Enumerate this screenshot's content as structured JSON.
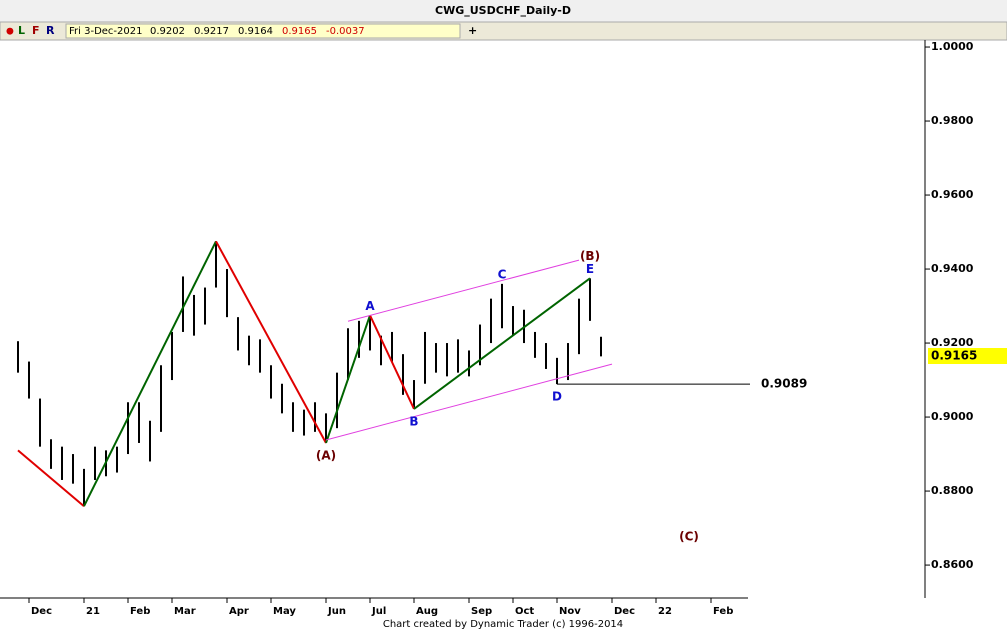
{
  "chart_data": {
    "type": "range-bar",
    "title": "CWG_USDCHF_Daily-D",
    "toolbar": {
      "marker": "●",
      "buttons": [
        "L",
        "F",
        "R"
      ],
      "date": "Fri 3-Dec-2021",
      "open": 0.9202,
      "high": 0.9217,
      "low": 0.9164,
      "close": 0.9165,
      "change": -0.0037,
      "add": "+"
    },
    "footer": "Chart created by Dynamic Trader  (c) 1996-2014",
    "color": "#000000",
    "categories": [
      null,
      "Dec",
      null,
      null,
      null,
      null,
      "21",
      null,
      null,
      null,
      "Feb",
      null,
      null,
      null,
      "Mar",
      null,
      null,
      null,
      null,
      "Apr",
      null,
      null,
      null,
      "May",
      null,
      null,
      null,
      null,
      "Jun",
      null,
      null,
      null,
      "Jul",
      null,
      null,
      null,
      "Aug",
      null,
      null,
      null,
      null,
      "Sep",
      null,
      null,
      null,
      "Oct",
      null,
      null,
      null,
      "Nov",
      null,
      null,
      null,
      null,
      "Dec",
      null,
      null,
      null,
      "22",
      null,
      null,
      null,
      null,
      "Feb",
      null,
      null,
      null
    ],
    "high": [
      0.9205,
      0.915,
      0.905,
      0.894,
      0.892,
      0.89,
      0.886,
      0.892,
      0.891,
      0.892,
      0.904,
      0.904,
      0.899,
      0.914,
      0.923,
      0.938,
      0.933,
      0.935,
      0.9475,
      0.94,
      0.927,
      0.922,
      0.921,
      0.914,
      0.909,
      0.904,
      0.902,
      0.904,
      0.901,
      0.912,
      0.924,
      0.926,
      0.9275,
      0.922,
      0.923,
      0.917,
      0.91,
      0.923,
      0.92,
      0.92,
      0.921,
      0.918,
      0.925,
      0.932,
      0.936,
      0.93,
      0.929,
      0.923,
      0.92,
      0.916,
      0.92,
      0.932,
      0.9375,
      0.9217,
      null,
      null,
      null,
      null,
      null,
      null,
      null,
      null,
      null,
      null,
      null,
      null,
      null
    ],
    "low": [
      0.912,
      0.905,
      0.892,
      0.886,
      0.883,
      0.882,
      0.8759,
      0.883,
      0.884,
      0.885,
      0.89,
      0.893,
      0.888,
      0.896,
      0.91,
      0.923,
      0.922,
      0.925,
      0.935,
      0.927,
      0.918,
      0.914,
      0.912,
      0.905,
      0.901,
      0.896,
      0.895,
      0.896,
      0.893,
      0.897,
      0.91,
      0.916,
      0.918,
      0.914,
      0.915,
      0.906,
      0.9022,
      0.909,
      0.912,
      0.911,
      0.912,
      0.911,
      0.914,
      0.92,
      0.924,
      0.922,
      0.92,
      0.916,
      0.913,
      0.9089,
      0.91,
      0.917,
      0.926,
      0.9164,
      null,
      null,
      null,
      null,
      null,
      null,
      null,
      null,
      null,
      null,
      null,
      null,
      null
    ],
    "ylim": [
      0.8511,
      1.0019
    ],
    "yticks": [
      {
        "value": 0.86,
        "label": "0.8600"
      },
      {
        "value": 0.88,
        "label": "0.8800"
      },
      {
        "value": 0.9,
        "label": "0.9000"
      },
      {
        "value": 0.92,
        "label": "0.9200"
      },
      {
        "value": 0.94,
        "label": "0.9400"
      },
      {
        "value": 0.96,
        "label": "0.9600"
      },
      {
        "value": 0.98,
        "label": "0.9800"
      },
      {
        "value": 1.0,
        "label": "1.0000"
      }
    ],
    "last_price": 0.9165,
    "last_price_color": "#ffff00",
    "wave_pivots": [
      {
        "index": 0,
        "value": 0.891
      },
      {
        "index": 6,
        "value": 0.8759
      },
      {
        "index": 18,
        "value": 0.9475
      },
      {
        "index": 28,
        "value": 0.893
      },
      {
        "index": 32,
        "value": 0.9275
      },
      {
        "index": 36,
        "value": 0.9022
      },
      {
        "index": 52,
        "value": 0.9375
      }
    ],
    "wave_colors": [
      "#e00000",
      "#006400",
      "#e00000",
      "#006400",
      "#e00000",
      "#006400"
    ],
    "channel_color": "#e040e0",
    "channels": [
      {
        "from": {
          "index": 28,
          "value": 0.8938
        },
        "to": {
          "index": 54,
          "value": 0.9143
        }
      },
      {
        "from": {
          "index": 30,
          "value": 0.9259
        },
        "to": {
          "index": 51,
          "value": 0.9424
        }
      }
    ],
    "support": {
      "value": 0.9089,
      "index": 49
    },
    "wave_labels": [
      {
        "text": "(A)",
        "index": 28,
        "side": "below",
        "color": "#6b0000"
      },
      {
        "text": "A",
        "index": 32,
        "side": "above",
        "color": "#1010d0"
      },
      {
        "text": "B",
        "index": 36,
        "side": "below",
        "color": "#1010d0"
      },
      {
        "text": "C",
        "index": 44,
        "side": "above",
        "color": "#1010d0"
      },
      {
        "text": "D",
        "index": 49,
        "side": "below",
        "color": "#1010d0"
      },
      {
        "text": "E",
        "index": 52,
        "side": "above",
        "color": "#1010d0"
      },
      {
        "text": "(B)",
        "index": 52,
        "side": "top",
        "color": "#6b0000"
      }
    ],
    "target_label": {
      "text": "(C)",
      "index": 61,
      "value": 0.8676,
      "color": "#6b0000"
    }
  }
}
